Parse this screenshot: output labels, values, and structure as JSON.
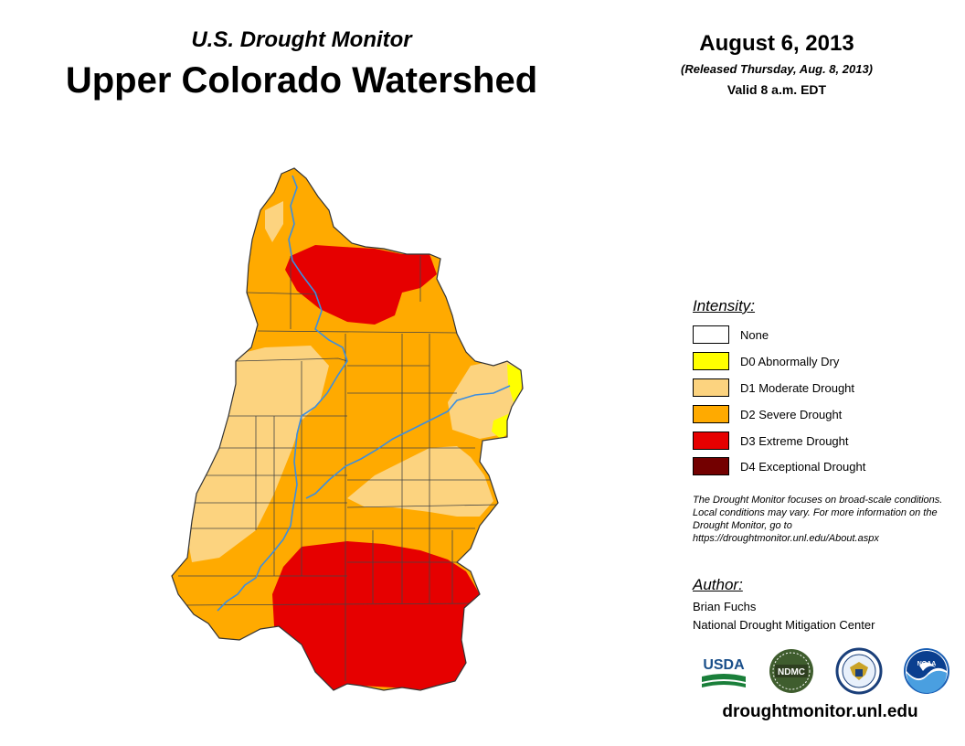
{
  "header": {
    "subtitle": "U.S. Drought Monitor",
    "title": "Upper Colorado Watershed",
    "date": "August 6, 2013",
    "released": "(Released Thursday, Aug. 8, 2013)",
    "valid": "Valid 8 a.m. EDT"
  },
  "legend": {
    "heading": "Intensity:",
    "items": [
      {
        "label": "None",
        "color": "#ffffff"
      },
      {
        "label": "D0 Abnormally Dry",
        "color": "#ffff00"
      },
      {
        "label": "D1 Moderate Drought",
        "color": "#fcd37f"
      },
      {
        "label": "D2 Severe Drought",
        "color": "#ffaa00"
      },
      {
        "label": "D3 Extreme Drought",
        "color": "#e60000"
      },
      {
        "label": "D4 Exceptional Drought",
        "color": "#730000"
      }
    ]
  },
  "note": "The Drought Monitor focuses on broad-scale conditions. Local conditions may vary. For more information on the Drought Monitor, go to https://droughtmonitor.unl.edu/About.aspx",
  "author": {
    "heading": "Author:",
    "name": "Brian Fuchs",
    "organization": "National Drought Mitigation Center"
  },
  "logos": {
    "usda": "USDA",
    "ndmc": "NDMC",
    "noaa": "NOAA"
  },
  "website": "droughtmonitor.unl.edu",
  "colors": {
    "river": "#3b8ee0",
    "boundary": "#444444"
  }
}
